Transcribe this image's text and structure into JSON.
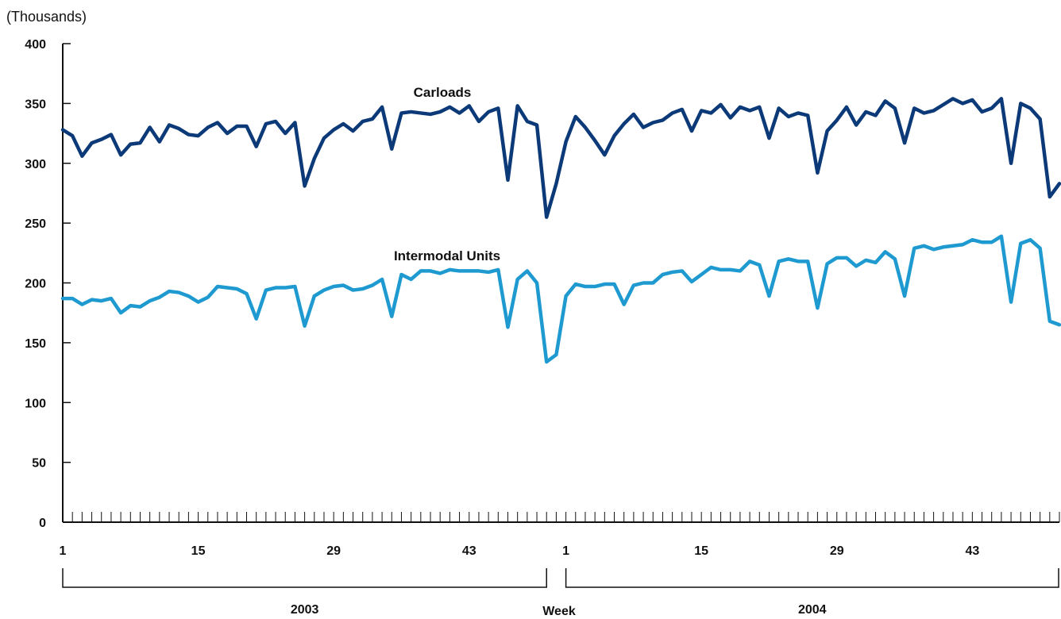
{
  "chart_data": {
    "type": "line",
    "unit_label": "(Thousands)",
    "xlabel": "Week",
    "ylim": [
      0,
      400
    ],
    "y_ticks": [
      0,
      50,
      100,
      150,
      200,
      250,
      300,
      350,
      400
    ],
    "x_tick_labels": [
      "1",
      "15",
      "29",
      "43",
      "1",
      "15",
      "29",
      "43"
    ],
    "x_tick_weeks": [
      1,
      15,
      29,
      43,
      53,
      67,
      81,
      95
    ],
    "year_groups": [
      {
        "label": "2003",
        "start_week": 1,
        "end_week": 51
      },
      {
        "label": "2004",
        "start_week": 53,
        "end_week": 104
      }
    ],
    "weeks_total": 104,
    "grid": false,
    "series": [
      {
        "name": "Carloads",
        "color": "#0c3a78",
        "values": [
          328,
          323,
          306,
          317,
          320,
          324,
          307,
          316,
          317,
          330,
          318,
          332,
          329,
          324,
          323,
          330,
          334,
          325,
          331,
          331,
          314,
          333,
          335,
          325,
          334,
          281,
          304,
          321,
          328,
          333,
          327,
          335,
          337,
          347,
          312,
          342,
          343,
          342,
          341,
          343,
          347,
          342,
          348,
          335,
          343,
          346,
          286,
          348,
          335,
          332,
          255,
          283,
          318,
          339,
          330,
          319,
          307,
          323,
          333,
          341,
          330,
          334,
          336,
          342,
          345,
          327,
          344,
          342,
          349,
          338,
          347,
          344,
          347,
          321,
          346,
          339,
          342,
          340,
          292,
          327,
          336,
          347,
          332,
          343,
          340,
          352,
          346,
          317,
          346,
          342,
          344,
          349,
          354,
          350,
          353,
          343,
          346,
          354,
          300,
          350,
          346,
          337,
          272,
          283
        ]
      },
      {
        "name": "Intermodal Units",
        "color": "#1f9ad1",
        "values": [
          187,
          187,
          182,
          186,
          185,
          187,
          175,
          181,
          180,
          185,
          188,
          193,
          192,
          189,
          184,
          188,
          197,
          196,
          195,
          191,
          170,
          194,
          196,
          196,
          197,
          164,
          189,
          194,
          197,
          198,
          194,
          195,
          198,
          203,
          172,
          207,
          203,
          210,
          210,
          208,
          211,
          210,
          210,
          210,
          209,
          211,
          163,
          203,
          210,
          200,
          134,
          140,
          189,
          199,
          197,
          197,
          199,
          199,
          182,
          198,
          200,
          200,
          207,
          209,
          210,
          201,
          207,
          213,
          211,
          211,
          210,
          218,
          215,
          189,
          218,
          220,
          218,
          218,
          179,
          216,
          221,
          221,
          214,
          219,
          217,
          226,
          220,
          189,
          229,
          231,
          228,
          230,
          231,
          232,
          236,
          234,
          234,
          239,
          184,
          233,
          236,
          229,
          168,
          165
        ]
      }
    ]
  }
}
